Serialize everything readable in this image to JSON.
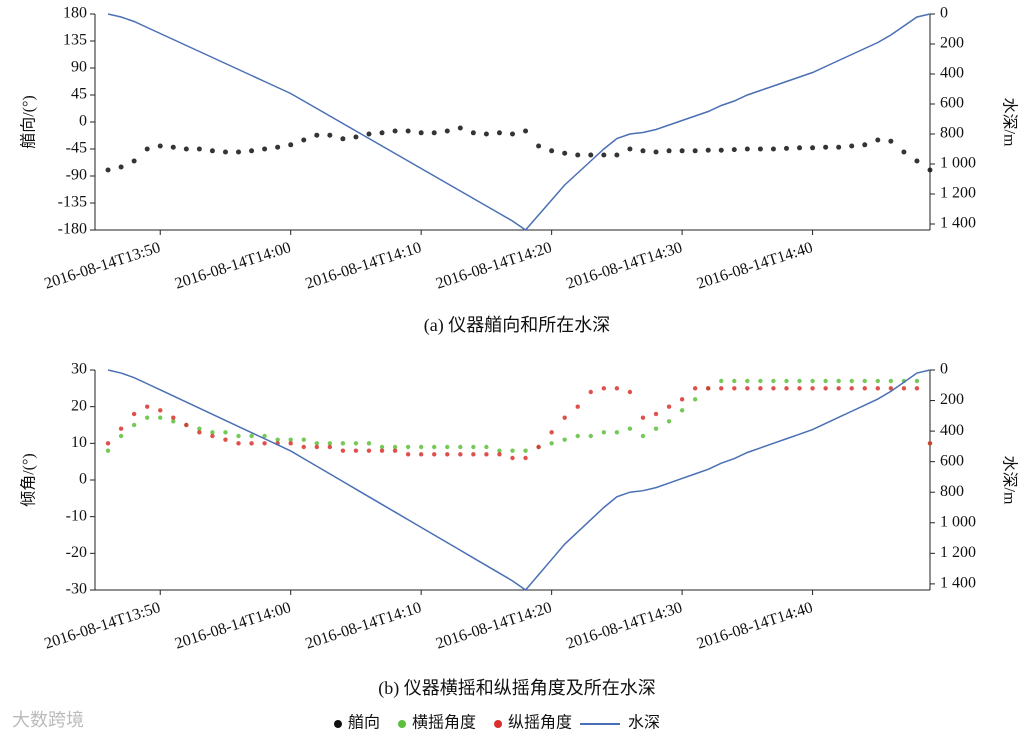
{
  "watermark": "大数跨境",
  "chart_data": [
    {
      "type": "scatter",
      "title": "(a) 仪器艏向和所在水深",
      "ylabel": "艏向/(°)",
      "y2label": "水深/m",
      "x": [
        "2016-08-14T13:46",
        "2016-08-14T13:47",
        "2016-08-14T13:48",
        "2016-08-14T13:49",
        "2016-08-14T13:50",
        "2016-08-14T13:51",
        "2016-08-14T13:52",
        "2016-08-14T13:53",
        "2016-08-14T13:54",
        "2016-08-14T13:55",
        "2016-08-14T13:56",
        "2016-08-14T13:57",
        "2016-08-14T13:58",
        "2016-08-14T13:59",
        "2016-08-14T14:00",
        "2016-08-14T14:01",
        "2016-08-14T14:02",
        "2016-08-14T14:03",
        "2016-08-14T14:04",
        "2016-08-14T14:05",
        "2016-08-14T14:06",
        "2016-08-14T14:07",
        "2016-08-14T14:08",
        "2016-08-14T14:09",
        "2016-08-14T14:10",
        "2016-08-14T14:11",
        "2016-08-14T14:12",
        "2016-08-14T14:13",
        "2016-08-14T14:14",
        "2016-08-14T14:15",
        "2016-08-14T14:16",
        "2016-08-14T14:17",
        "2016-08-14T14:18",
        "2016-08-14T14:19",
        "2016-08-14T14:20",
        "2016-08-14T14:21",
        "2016-08-14T14:22",
        "2016-08-14T14:23",
        "2016-08-14T14:24",
        "2016-08-14T14:25",
        "2016-08-14T14:26",
        "2016-08-14T14:27",
        "2016-08-14T14:28",
        "2016-08-14T14:29",
        "2016-08-14T14:30",
        "2016-08-14T14:31",
        "2016-08-14T14:32",
        "2016-08-14T14:33",
        "2016-08-14T14:34",
        "2016-08-14T14:35",
        "2016-08-14T14:36",
        "2016-08-14T14:37",
        "2016-08-14T14:38",
        "2016-08-14T14:39",
        "2016-08-14T14:40",
        "2016-08-14T14:41",
        "2016-08-14T14:42",
        "2016-08-14T14:43",
        "2016-08-14T14:44",
        "2016-08-14T14:45",
        "2016-08-14T14:46",
        "2016-08-14T14:47",
        "2016-08-14T14:48",
        "2016-08-14T14:49"
      ],
      "xlim": [
        "2016-08-14T13:45",
        "2016-08-14T14:49"
      ],
      "xticks": [
        "2016-08-14T13:50",
        "2016-08-14T14:00",
        "2016-08-14T14:10",
        "2016-08-14T14:20",
        "2016-08-14T14:30",
        "2016-08-14T14:40"
      ],
      "ylim": [
        -180,
        180
      ],
      "yticks": [
        -180,
        -135,
        -90,
        -45,
        0,
        45,
        90,
        135,
        180
      ],
      "y2lim": [
        1440,
        0
      ],
      "y2ticks": [
        {
          "value": 1400,
          "label": "1 400"
        },
        {
          "value": 1200,
          "label": "1 200"
        },
        {
          "value": 1000,
          "label": "1 000"
        },
        800,
        600,
        400,
        200,
        0
      ],
      "series": [
        {
          "name": "艏向",
          "type": "scatter",
          "color": "#111111",
          "values": [
            -80,
            -75,
            -65,
            -45,
            -40,
            -42,
            -45,
            -45,
            -48,
            -50,
            -50,
            -48,
            -45,
            -42,
            -38,
            -30,
            -22,
            -22,
            -28,
            -25,
            -20,
            -18,
            -15,
            -15,
            -18,
            -18,
            -15,
            -10,
            -18,
            -20,
            -18,
            -20,
            -15,
            -40,
            -48,
            -52,
            -55,
            -55,
            -55,
            -55,
            -45,
            -48,
            -50,
            -48,
            -48,
            -48,
            -47,
            -47,
            -46,
            -45,
            -45,
            -45,
            -44,
            -43,
            -43,
            -42,
            -42,
            -40,
            -38,
            -30,
            -32,
            -50,
            -65,
            -80
          ]
        },
        {
          "type": "line",
          "axis": "y2",
          "color": "#4a6fb5",
          "values": [
            0,
            20,
            50,
            90,
            130,
            170,
            210,
            250,
            290,
            330,
            370,
            410,
            450,
            490,
            530,
            580,
            630,
            680,
            730,
            780,
            830,
            880,
            930,
            980,
            1030,
            1080,
            1130,
            1180,
            1230,
            1280,
            1330,
            1380,
            1440,
            1340,
            1240,
            1140,
            1060,
            980,
            900,
            830,
            800,
            790,
            770,
            740,
            710,
            680,
            650,
            610,
            580,
            540,
            510,
            480,
            450,
            420,
            390,
            350,
            310,
            270,
            230,
            190,
            140,
            80,
            20,
            0
          ]
        }
      ]
    },
    {
      "type": "scatter",
      "title": "(b) 仪器横摇和纵摇角度及所在水深",
      "ylabel": "倾角/(°)",
      "y2label": "水深/m",
      "x": [
        "2016-08-14T13:46",
        "2016-08-14T13:47",
        "2016-08-14T13:48",
        "2016-08-14T13:49",
        "2016-08-14T13:50",
        "2016-08-14T13:51",
        "2016-08-14T13:52",
        "2016-08-14T13:53",
        "2016-08-14T13:54",
        "2016-08-14T13:55",
        "2016-08-14T13:56",
        "2016-08-14T13:57",
        "2016-08-14T13:58",
        "2016-08-14T13:59",
        "2016-08-14T14:00",
        "2016-08-14T14:01",
        "2016-08-14T14:02",
        "2016-08-14T14:03",
        "2016-08-14T14:04",
        "2016-08-14T14:05",
        "2016-08-14T14:06",
        "2016-08-14T14:07",
        "2016-08-14T14:08",
        "2016-08-14T14:09",
        "2016-08-14T14:10",
        "2016-08-14T14:11",
        "2016-08-14T14:12",
        "2016-08-14T14:13",
        "2016-08-14T14:14",
        "2016-08-14T14:15",
        "2016-08-14T14:16",
        "2016-08-14T14:17",
        "2016-08-14T14:18",
        "2016-08-14T14:19",
        "2016-08-14T14:20",
        "2016-08-14T14:21",
        "2016-08-14T14:22",
        "2016-08-14T14:23",
        "2016-08-14T14:24",
        "2016-08-14T14:25",
        "2016-08-14T14:26",
        "2016-08-14T14:27",
        "2016-08-14T14:28",
        "2016-08-14T14:29",
        "2016-08-14T14:30",
        "2016-08-14T14:31",
        "2016-08-14T14:32",
        "2016-08-14T14:33",
        "2016-08-14T14:34",
        "2016-08-14T14:35",
        "2016-08-14T14:36",
        "2016-08-14T14:37",
        "2016-08-14T14:38",
        "2016-08-14T14:39",
        "2016-08-14T14:40",
        "2016-08-14T14:41",
        "2016-08-14T14:42",
        "2016-08-14T14:43",
        "2016-08-14T14:44",
        "2016-08-14T14:45",
        "2016-08-14T14:46",
        "2016-08-14T14:47",
        "2016-08-14T14:48",
        "2016-08-14T14:49"
      ],
      "xlim": [
        "2016-08-14T13:45",
        "2016-08-14T14:49"
      ],
      "xticks": [
        "2016-08-14T13:50",
        "2016-08-14T14:00",
        "2016-08-14T14:10",
        "2016-08-14T14:20",
        "2016-08-14T14:30",
        "2016-08-14T14:40"
      ],
      "ylim": [
        -30,
        30
      ],
      "yticks": [
        -30,
        -20,
        -10,
        0,
        10,
        20,
        30
      ],
      "y2lim": [
        1440,
        0
      ],
      "y2ticks": [
        {
          "value": 1400,
          "label": "1 400"
        },
        {
          "value": 1200,
          "label": "1 200"
        },
        {
          "value": 1000,
          "label": "1 000"
        },
        800,
        600,
        400,
        200,
        0
      ],
      "series": [
        {
          "name": "横摇角度",
          "type": "scatter",
          "color": "#5dbf3c",
          "values": [
            8,
            12,
            15,
            17,
            17,
            16,
            15,
            14,
            13,
            13,
            12,
            12,
            12,
            11,
            11,
            11,
            10,
            10,
            10,
            10,
            10,
            9,
            9,
            9,
            9,
            9,
            9,
            9,
            9,
            9,
            8,
            8,
            8,
            9,
            10,
            11,
            12,
            12,
            13,
            13,
            14,
            12,
            14,
            16,
            19,
            22,
            25,
            27,
            27,
            27,
            27,
            27,
            27,
            27,
            27,
            27,
            27,
            27,
            27,
            27,
            27,
            27,
            27,
            10
          ]
        },
        {
          "name": "纵摇角度",
          "type": "scatter",
          "color": "#d9302c",
          "values": [
            10,
            14,
            18,
            20,
            19,
            17,
            15,
            13,
            12,
            11,
            10,
            10,
            10,
            10,
            10,
            9,
            9,
            9,
            8,
            8,
            8,
            8,
            8,
            7,
            7,
            7,
            7,
            7,
            7,
            7,
            7,
            6,
            6,
            9,
            13,
            17,
            20,
            24,
            25,
            25,
            24,
            17,
            18,
            20,
            22,
            25,
            25,
            25,
            25,
            25,
            25,
            25,
            25,
            25,
            25,
            25,
            25,
            25,
            25,
            25,
            25,
            25,
            25,
            10
          ]
        },
        {
          "name": "水深",
          "type": "line",
          "axis": "y2",
          "color": "#4a6fb5",
          "values": [
            0,
            20,
            50,
            90,
            130,
            170,
            210,
            250,
            290,
            330,
            370,
            410,
            450,
            490,
            530,
            580,
            630,
            680,
            730,
            780,
            830,
            880,
            930,
            980,
            1030,
            1080,
            1130,
            1180,
            1230,
            1280,
            1330,
            1380,
            1440,
            1340,
            1240,
            1140,
            1060,
            980,
            900,
            830,
            800,
            790,
            770,
            740,
            710,
            680,
            650,
            610,
            580,
            540,
            510,
            480,
            450,
            420,
            390,
            350,
            310,
            270,
            230,
            190,
            140,
            80,
            20,
            0
          ]
        }
      ]
    }
  ]
}
